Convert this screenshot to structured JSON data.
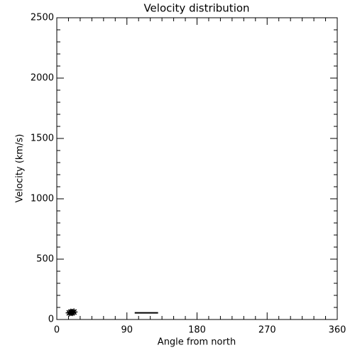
{
  "chart_data": {
    "type": "scatter",
    "title": "Velocity distribution",
    "x_label": "Angle from north",
    "y_label": "Velocity (km/s)",
    "xlim": [
      0,
      360
    ],
    "xticks": [
      0,
      90,
      180,
      270,
      360
    ],
    "ylim": [
      0,
      2500
    ],
    "yticks": [
      0,
      500,
      1000,
      1500,
      2000,
      2500
    ],
    "minor_xticks": [
      15,
      30,
      45,
      60,
      75,
      105,
      120,
      135,
      150,
      165,
      195,
      210,
      225,
      240,
      255,
      285,
      300,
      315,
      330,
      345
    ],
    "minor_yticks": [
      100,
      200,
      300,
      400,
      600,
      700,
      800,
      900,
      1100,
      1200,
      1300,
      1400,
      1600,
      1700,
      1800,
      1900,
      2100,
      2200,
      2300,
      2400
    ],
    "series": [
      {
        "marker": "asterisk",
        "color": "#000000",
        "x": [
          16,
          18,
          20,
          22
        ],
        "values": [
          55,
          60,
          58,
          62
        ]
      },
      {
        "marker": "line",
        "color": "#000000",
        "x": [
          100,
          130
        ],
        "values": [
          55,
          55
        ]
      }
    ]
  }
}
